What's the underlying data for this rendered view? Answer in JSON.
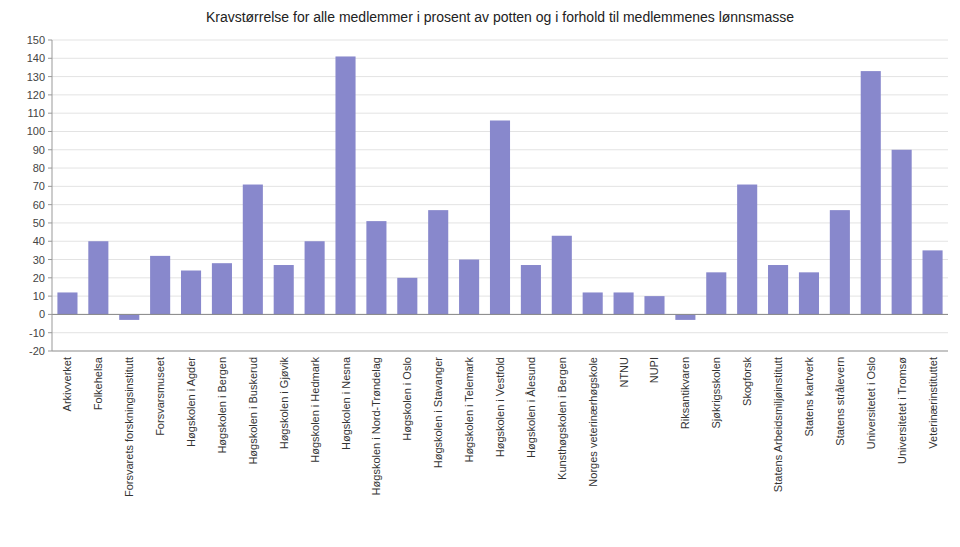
{
  "chart_data": {
    "type": "bar",
    "title": "Kravstørrelse for alle medlemmer i prosent av potten og i forhold til medlemmenes lønnsmasse",
    "categories": [
      "Arkivverket",
      "Folkehelsa",
      "Forsvarets forskningsinstitutt",
      "Forsvarsmuseet",
      "Høgskolen i Agder",
      "Høgskolen i Bergen",
      "Høgskolen i Buskerud",
      "Høgskolen i Gjøvik",
      "Høgskolen i Hedmark",
      "Høgskolen i Nesna",
      "Høgskolen i Nord-Trøndelag",
      "Høgskolen i Oslo",
      "Høgskolen i Stavanger",
      "Høgskolen i Telemark",
      "Høgskolen i Vestfold",
      "Høgskolen i Ålesund",
      "Kunsthøgskolen i Bergen",
      "Norges veterinærhøgskole",
      "NTNU",
      "NUPI",
      "Riksantikvaren",
      "Sjøkrigsskolen",
      "Skogforsk",
      "Statens Arbeidsmiljøinstitutt",
      "Statens kartverk",
      "Statens strålevern",
      "Universitetet i Oslo",
      "Universitetet i Tromsø",
      "Veterinærinstituttet"
    ],
    "values": [
      12,
      40,
      -3,
      32,
      24,
      28,
      71,
      27,
      40,
      141,
      51,
      20,
      57,
      30,
      106,
      27,
      43,
      12,
      12,
      10,
      -3,
      23,
      71,
      27,
      23,
      57,
      133,
      90,
      35
    ],
    "color": "#8888cc",
    "ylim": [
      -20,
      150
    ],
    "yticks": [
      -20,
      -10,
      0,
      10,
      20,
      30,
      40,
      50,
      60,
      70,
      80,
      90,
      100,
      110,
      120,
      130,
      140,
      150
    ],
    "grid": true
  }
}
